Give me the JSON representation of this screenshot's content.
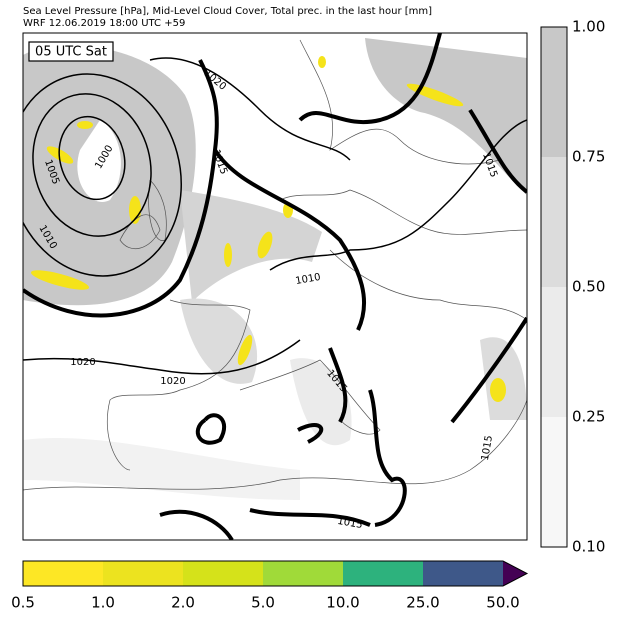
{
  "header": {
    "title": "Sea Level Pressure [hPa], Mid-Level Cloud Cover, Total prec. in the last hour [mm]",
    "subtitle": "WRF 12.06.2019 18:00 UTC +59"
  },
  "map": {
    "time_label": "05 UTC Sat",
    "contour_labels": [
      "1020",
      "1015",
      "1000",
      "1005",
      "1010",
      "1010",
      "1020",
      "1020",
      "1015",
      "1015",
      "1015",
      "1015"
    ]
  },
  "cloud_colorbar": {
    "labels": [
      "1.00",
      "0.75",
      "0.50",
      "0.25",
      "0.10"
    ]
  },
  "precip_colorbar": {
    "labels": [
      "0.5",
      "1.0",
      "2.0",
      "5.0",
      "10.0",
      "25.0",
      "50.0"
    ]
  }
}
